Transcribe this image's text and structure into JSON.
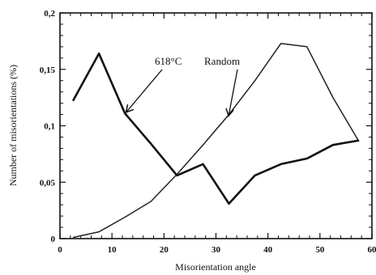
{
  "chart_data": {
    "type": "line",
    "xlabel": "Misorientation angle",
    "ylabel": "Number of misorientations (%)",
    "xlim": [
      0,
      60
    ],
    "ylim": [
      0,
      0.2
    ],
    "x_ticks": [
      0,
      10,
      20,
      30,
      40,
      50,
      60
    ],
    "x_tick_labels": [
      "0",
      "10",
      "20",
      "30",
      "40",
      "50",
      "60"
    ],
    "y_ticks": [
      0,
      0.05,
      0.1,
      0.15,
      0.2
    ],
    "y_tick_labels": [
      "0",
      "0,05",
      "0,1",
      "0,15",
      "0,2"
    ],
    "grid": false,
    "series": [
      {
        "name": "618°C",
        "x": [
          2.5,
          7.5,
          12.5,
          17.5,
          22.5,
          27.5,
          32.5,
          37.5,
          42.5,
          47.5,
          52.5,
          57.5
        ],
        "values": [
          0.122,
          0.164,
          0.111,
          0.084,
          0.056,
          0.066,
          0.031,
          0.056,
          0.066,
          0.071,
          0.083,
          0.087
        ],
        "color": "#111111",
        "style": "solid-thick"
      },
      {
        "name": "Random",
        "x": [
          2.5,
          7.5,
          12.5,
          17.5,
          22.5,
          27.5,
          32.5,
          37.5,
          42.5,
          47.5,
          52.5,
          57.5
        ],
        "values": [
          0.001,
          0.006,
          0.019,
          0.033,
          0.057,
          0.083,
          0.11,
          0.14,
          0.173,
          0.17,
          0.125,
          0.086
        ],
        "color": "#222222",
        "style": "thin"
      }
    ],
    "annotations": [
      {
        "text": "618°C",
        "series": 0,
        "arrow_to_x": 12.5
      },
      {
        "text": "Random",
        "series": 1,
        "arrow_to_x": 32.3
      }
    ]
  }
}
